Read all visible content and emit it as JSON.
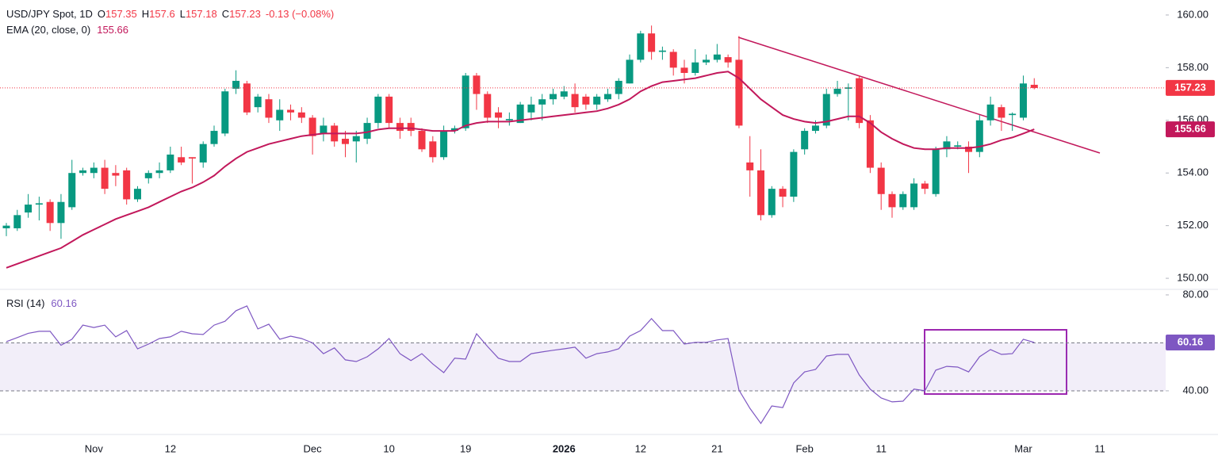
{
  "chart_data": {
    "type": "candlestick",
    "title": "USD/JPY Spot, 1D",
    "legend": {
      "open_label": "O",
      "high_label": "H",
      "low_label": "L",
      "close_label": "C",
      "change": "-0.13 (−0.08%)"
    },
    "categories": [
      null,
      null,
      null,
      null,
      null,
      null,
      null,
      null,
      "Nov",
      null,
      null,
      null,
      null,
      null,
      null,
      "12",
      null,
      null,
      null,
      null,
      null,
      null,
      null,
      null,
      null,
      null,
      null,
      null,
      "Dec",
      null,
      null,
      null,
      null,
      null,
      null,
      "10",
      null,
      null,
      null,
      null,
      null,
      null,
      "19",
      null,
      null,
      null,
      null,
      null,
      null,
      null,
      null,
      "2026",
      null,
      null,
      null,
      null,
      null,
      null,
      "12",
      null,
      null,
      null,
      null,
      null,
      null,
      "21",
      null,
      null,
      null,
      null,
      null,
      null,
      null,
      "Feb",
      null,
      null,
      null,
      null,
      null,
      null,
      "11",
      null,
      null,
      null,
      null,
      null,
      null,
      null,
      null,
      null,
      null,
      null,
      null,
      "Mar",
      null,
      null,
      null,
      null,
      null,
      null,
      "11"
    ],
    "candles": {
      "up_color": "#089981",
      "down_color": "#f23645",
      "open": [
        151.9,
        151.9,
        152.5,
        152.8,
        152.9,
        152.1,
        152.7,
        154.0,
        154.0,
        154.2,
        154.0,
        154.1,
        153.0,
        153.8,
        154.0,
        154.1,
        154.6,
        154.6,
        154.4,
        155.1,
        155.5,
        157.2,
        157.4,
        156.5,
        156.8,
        156.0,
        156.4,
        156.3,
        156.1,
        155.5,
        155.8,
        155.3,
        155.2,
        155.3,
        155.9,
        156.9,
        155.9,
        155.9,
        155.6,
        155.2,
        154.6,
        155.6,
        155.7,
        157.7,
        157.0,
        156.3,
        156.0,
        155.9,
        156.3,
        156.6,
        156.8,
        156.9,
        157.0,
        156.9,
        156.6,
        156.8,
        157.0,
        157.4,
        158.3,
        159.3,
        158.6,
        158.6,
        158.0,
        157.8,
        158.2,
        158.3,
        158.4,
        158.3,
        154.4,
        154.1,
        152.4,
        153.4,
        153.1,
        154.9,
        155.6,
        155.8,
        157.0,
        157.2,
        157.6,
        156.0,
        154.2,
        153.2,
        152.7,
        152.7,
        153.6,
        153.2,
        154.9,
        155.0,
        155.0,
        154.8,
        156.0,
        156.5,
        156.2,
        156.1,
        157.35,
        null,
        null,
        null,
        null,
        null,
        null
      ],
      "high": [
        152.1,
        152.6,
        153.2,
        153.1,
        153.0,
        153.2,
        154.5,
        154.2,
        154.4,
        154.5,
        154.3,
        154.2,
        153.5,
        154.1,
        154.4,
        155.0,
        155.0,
        154.6,
        155.2,
        155.8,
        157.2,
        157.9,
        157.5,
        157.0,
        157.0,
        156.8,
        156.6,
        156.5,
        156.2,
        156.1,
        155.9,
        155.6,
        155.6,
        156.1,
        157.0,
        157.0,
        156.1,
        156.1,
        155.7,
        155.4,
        155.8,
        155.8,
        157.8,
        157.8,
        157.1,
        156.5,
        156.3,
        156.7,
        156.9,
        157.0,
        157.2,
        157.3,
        157.4,
        157.0,
        157.0,
        157.2,
        157.6,
        158.5,
        159.4,
        159.6,
        158.8,
        158.7,
        158.3,
        158.7,
        158.5,
        158.9,
        158.5,
        159.2,
        155.4,
        154.9,
        153.5,
        153.5,
        154.9,
        155.7,
        156.0,
        157.2,
        157.5,
        157.4,
        157.7,
        156.2,
        154.4,
        153.3,
        153.3,
        153.8,
        153.7,
        155.0,
        155.4,
        155.2,
        155.2,
        156.2,
        156.9,
        156.6,
        156.3,
        157.7,
        157.6,
        null,
        null,
        null,
        null,
        null,
        null
      ],
      "low": [
        151.6,
        151.8,
        152.3,
        152.2,
        151.8,
        151.5,
        152.6,
        153.9,
        153.8,
        153.2,
        153.5,
        152.8,
        152.9,
        153.6,
        153.8,
        154.0,
        154.3,
        153.6,
        154.2,
        155.0,
        155.4,
        157.0,
        156.2,
        156.3,
        155.9,
        155.6,
        156.0,
        155.9,
        154.7,
        155.2,
        155.0,
        154.6,
        154.4,
        155.1,
        155.7,
        155.7,
        155.3,
        155.4,
        154.8,
        154.4,
        154.5,
        155.5,
        155.6,
        156.4,
        155.9,
        155.7,
        155.8,
        155.9,
        156.0,
        156.0,
        156.6,
        156.8,
        156.3,
        156.4,
        156.4,
        156.7,
        156.8,
        157.4,
        158.2,
        158.3,
        158.3,
        157.7,
        157.4,
        157.7,
        158.1,
        158.2,
        158.0,
        155.7,
        153.1,
        152.2,
        152.3,
        152.7,
        152.9,
        154.7,
        155.5,
        155.7,
        156.9,
        156.0,
        155.7,
        154.0,
        152.6,
        152.3,
        152.6,
        152.6,
        153.2,
        153.1,
        154.6,
        154.9,
        154.0,
        154.6,
        155.8,
        155.6,
        155.6,
        156.0,
        157.18,
        null,
        null,
        null,
        null,
        null,
        null
      ],
      "close": [
        152.0,
        152.4,
        152.8,
        152.85,
        152.1,
        152.9,
        154.0,
        154.1,
        154.2,
        153.4,
        153.9,
        153.0,
        153.4,
        154.0,
        154.1,
        154.7,
        154.4,
        154.55,
        155.1,
        155.6,
        157.1,
        157.5,
        156.3,
        156.9,
        156.1,
        156.4,
        156.3,
        156.1,
        155.4,
        155.8,
        155.2,
        155.1,
        155.4,
        155.9,
        156.9,
        155.9,
        155.6,
        155.6,
        154.9,
        154.6,
        155.6,
        155.7,
        157.7,
        157.0,
        156.1,
        156.1,
        156.05,
        156.6,
        156.6,
        156.8,
        157.0,
        157.1,
        156.5,
        156.6,
        156.9,
        157.0,
        157.5,
        158.3,
        159.3,
        158.6,
        158.65,
        158.0,
        157.8,
        158.2,
        158.3,
        158.5,
        158.2,
        155.8,
        154.1,
        152.4,
        153.4,
        153.1,
        154.8,
        155.6,
        155.8,
        157.0,
        157.2,
        157.25,
        155.9,
        154.2,
        153.2,
        152.7,
        153.2,
        153.6,
        153.4,
        154.9,
        155.2,
        155.05,
        154.8,
        156.0,
        156.6,
        156.1,
        156.25,
        157.4,
        157.23,
        null,
        null,
        null,
        null,
        null,
        null
      ]
    },
    "ema": {
      "name": "EMA (20, close, 0)",
      "color": "#c2185b",
      "values": [
        150.4,
        150.55,
        150.7,
        150.85,
        151.0,
        151.15,
        151.4,
        151.65,
        151.85,
        152.05,
        152.25,
        152.4,
        152.55,
        152.7,
        152.9,
        153.1,
        153.3,
        153.45,
        153.65,
        153.9,
        154.25,
        154.55,
        154.8,
        154.95,
        155.1,
        155.2,
        155.3,
        155.4,
        155.45,
        155.5,
        155.5,
        155.5,
        155.5,
        155.55,
        155.65,
        155.7,
        155.7,
        155.7,
        155.65,
        155.6,
        155.6,
        155.6,
        155.8,
        155.9,
        155.95,
        155.95,
        155.95,
        156.0,
        156.05,
        156.1,
        156.15,
        156.2,
        156.25,
        156.3,
        156.35,
        156.45,
        156.6,
        156.8,
        157.1,
        157.3,
        157.45,
        157.5,
        157.55,
        157.6,
        157.7,
        157.8,
        157.85,
        157.6,
        157.2,
        156.8,
        156.5,
        156.2,
        156.05,
        155.95,
        155.9,
        155.95,
        156.05,
        156.15,
        156.15,
        155.9,
        155.55,
        155.3,
        155.1,
        154.95,
        154.9,
        154.9,
        154.95,
        154.95,
        154.95,
        155.0,
        155.1,
        155.25,
        155.35,
        155.5,
        155.66,
        null,
        null,
        null,
        null,
        null,
        null
      ]
    },
    "ylim": [
      149.58,
      160.57
    ],
    "yticks": [
      {
        "value": 150,
        "label": "150.00"
      },
      {
        "value": 152,
        "label": "152.00"
      },
      {
        "value": 154,
        "label": "154.00"
      },
      {
        "value": 156,
        "label": "156.00"
      },
      {
        "value": 158,
        "label": "158.00"
      },
      {
        "value": 160,
        "label": "160.00"
      }
    ],
    "rsi": {
      "type": "line",
      "name": "RSI (14)",
      "color": "#7e57c2",
      "values": [
        60.5,
        62.2,
        64,
        64.8,
        64.8,
        59,
        61.5,
        67.4,
        66.4,
        67.4,
        62.5,
        65.1,
        57.5,
        59.5,
        61.8,
        62.5,
        64.8,
        63.8,
        63.5,
        67.4,
        69,
        73.4,
        75.4,
        65.8,
        67.8,
        61.5,
        62.8,
        61.8,
        60,
        55.5,
        57.9,
        52.9,
        52.2,
        54.2,
        57.5,
        61.8,
        55.5,
        52.6,
        55.5,
        51.2,
        47.6,
        53.6,
        53.2,
        63.8,
        58.5,
        53.6,
        52.2,
        52.2,
        55.5,
        56.2,
        56.9,
        57.5,
        58.2,
        53.6,
        55.5,
        56.2,
        57.5,
        62.8,
        65.1,
        70.1,
        65.1,
        65.1,
        59.5,
        60.2,
        60.2,
        61.2,
        61.8,
        40.3,
        32.7,
        26.4,
        33.7,
        33,
        43.3,
        47.9,
        48.9,
        54.5,
        55.2,
        55.2,
        46.6,
        40.7,
        37,
        35.4,
        35.7,
        40.7,
        40,
        48.6,
        50.2,
        49.9,
        47.9,
        54.2,
        57.2,
        55.2,
        55.5,
        61.5,
        60.16,
        null,
        null,
        null,
        null,
        null,
        null
      ],
      "ylim": [
        21.8,
        82.3
      ],
      "yticks": [
        {
          "value": 40,
          "label": "40.00"
        },
        {
          "value": 80,
          "label": "80.00"
        }
      ],
      "band": [
        40,
        60
      ]
    }
  }
}
